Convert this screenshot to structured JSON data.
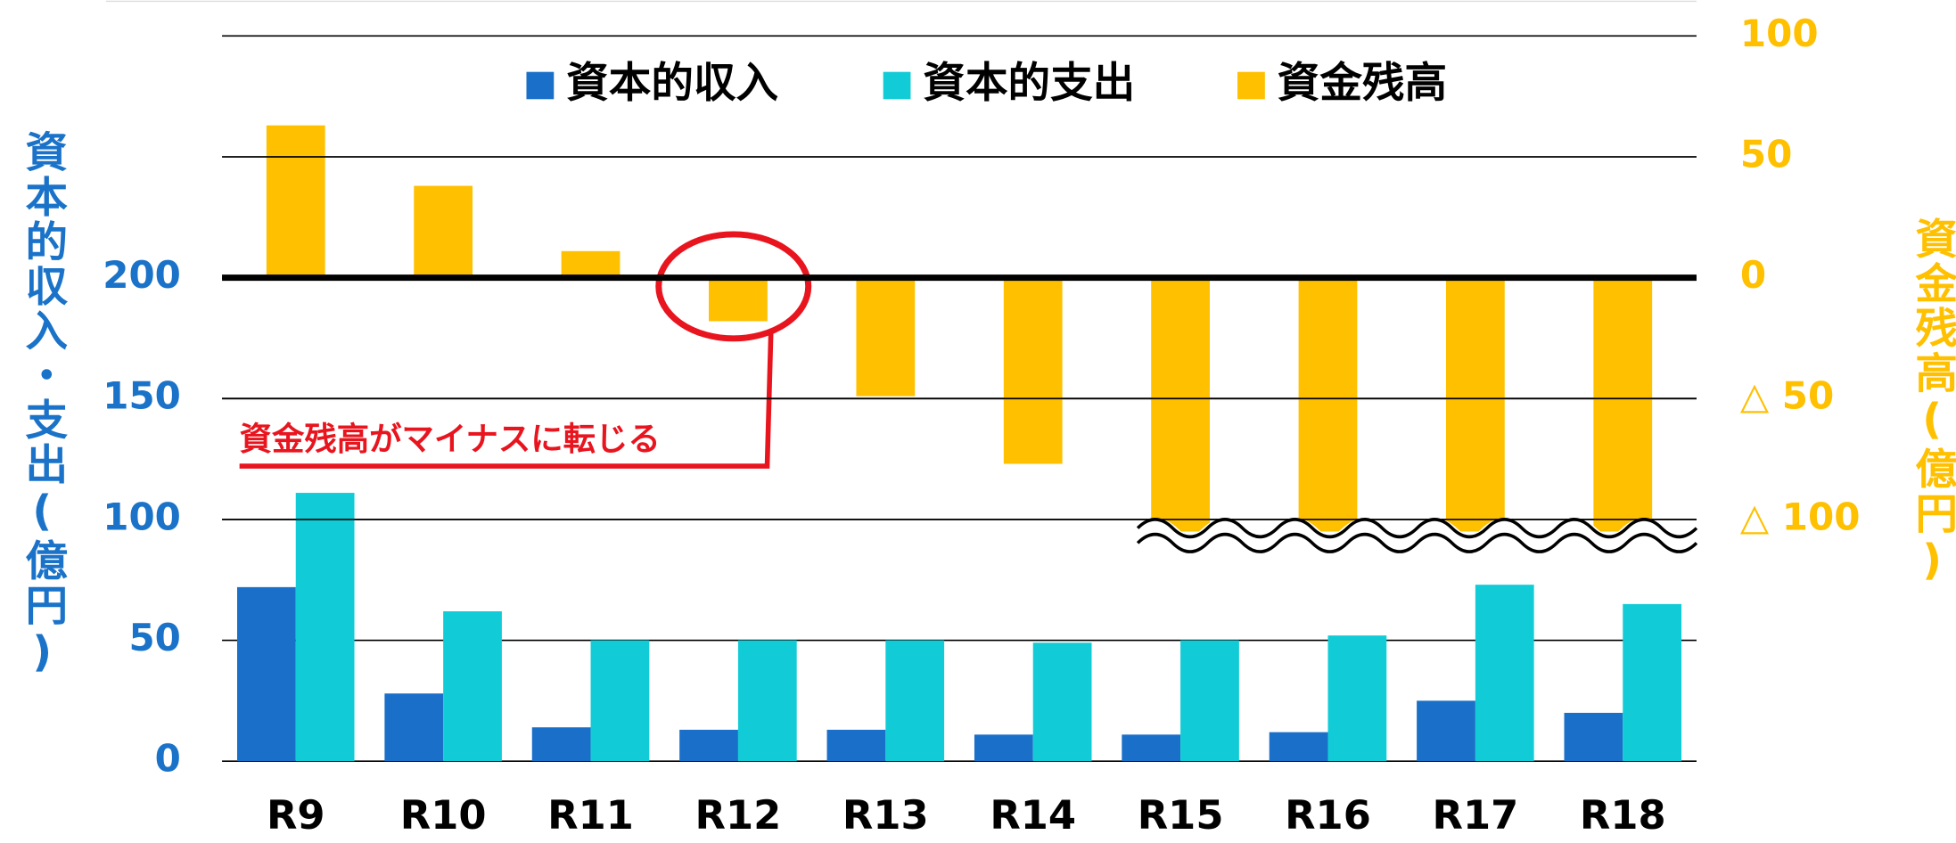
{
  "chart_data": {
    "type": "bar",
    "categories": [
      "R9",
      "R10",
      "R11",
      "R12",
      "R13",
      "R14",
      "R15",
      "R16",
      "R17",
      "R18"
    ],
    "series": [
      {
        "name": "資本的収入",
        "color": "#1a6fc9",
        "values": [
          72,
          28,
          14,
          13,
          13,
          11,
          11,
          12,
          25,
          20
        ]
      },
      {
        "name": "資本的支出",
        "color": "#11ccd6",
        "values": [
          111,
          62,
          50,
          50,
          50,
          49,
          50,
          52,
          73,
          65
        ]
      },
      {
        "name": "資金残高",
        "color": "#ffc000",
        "axis": "y2",
        "values": [
          63,
          38,
          11,
          -18,
          -49,
          -77,
          -105,
          -105,
          -105,
          -105
        ]
      }
    ],
    "ylim": [
      0,
      300
    ],
    "yticks": [
      0,
      50,
      100,
      150,
      200
    ],
    "y2lim": [
      -200,
      100
    ],
    "y2ticks": [
      100,
      50,
      0,
      {
        "value": -50,
        "label": "△ 50"
      },
      {
        "value": -100,
        "label": "△ 100"
      }
    ],
    "y_label": "資本的収入・支出(億円)",
    "y2_label": "資金残高(億円)",
    "annotation": "資金残高がマイナスに転じる",
    "legend": "top",
    "grid": true
  }
}
